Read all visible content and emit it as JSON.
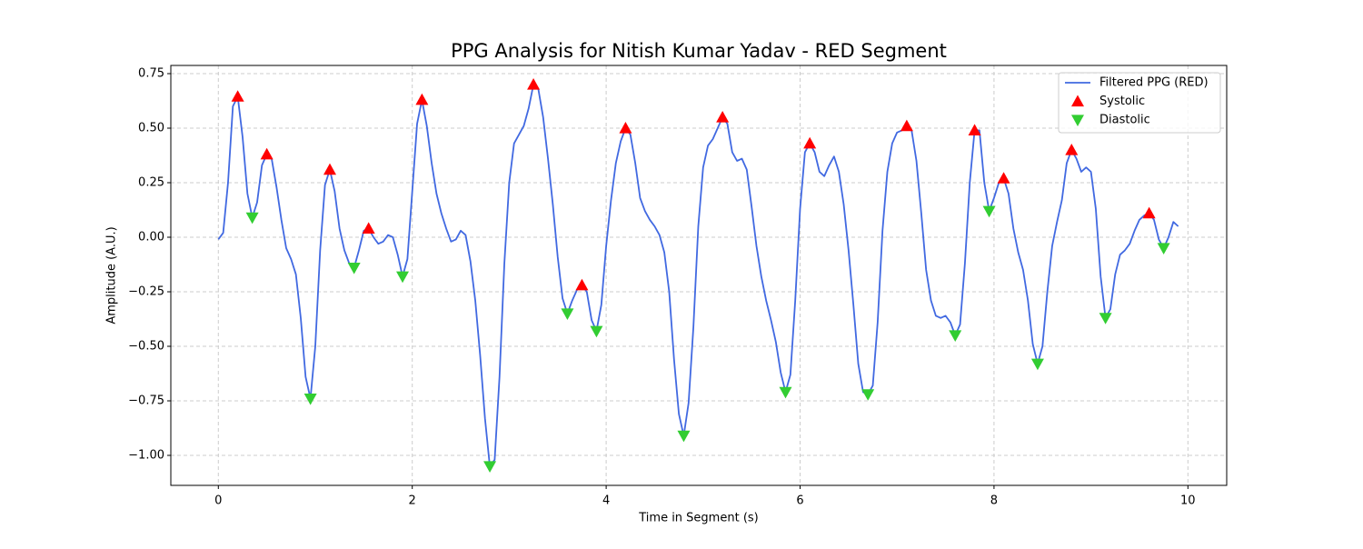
{
  "chart_data": {
    "type": "line",
    "title": "PPG Analysis for Nitish Kumar Yadav - RED Segment",
    "xlabel": "Time in Segment (s)",
    "ylabel": "Amplitude (A.U.)",
    "xlim": [
      -0.49,
      10.4
    ],
    "ylim": [
      -1.1375,
      0.7875
    ],
    "xticks": [
      0,
      2,
      4,
      6,
      8,
      10
    ],
    "yticks": [
      {
        "value": -1.0,
        "label": "−1.00"
      },
      {
        "value": -0.75,
        "label": "−0.75"
      },
      {
        "value": -0.5,
        "label": "−0.50"
      },
      {
        "value": -0.25,
        "label": "−0.25"
      },
      {
        "value": 0,
        "label": "0.00"
      },
      {
        "value": 0.25,
        "label": "0.25"
      },
      {
        "value": 0.5,
        "label": "0.50"
      },
      {
        "value": 0.75,
        "label": "0.75"
      }
    ],
    "grid": true,
    "legend": "upper right",
    "series": [
      {
        "name": "Filtered PPG (RED)",
        "color": "#4169e1",
        "x": [
          0,
          0.05,
          0.1,
          0.15,
          0.2,
          0.25,
          0.3,
          0.35,
          0.4,
          0.45,
          0.5,
          0.55,
          0.6,
          0.65,
          0.7,
          0.75,
          0.8,
          0.85,
          0.9,
          0.95,
          1,
          1.05,
          1.1,
          1.15,
          1.2,
          1.25,
          1.3,
          1.35,
          1.4,
          1.45,
          1.5,
          1.55,
          1.6,
          1.65,
          1.7,
          1.75,
          1.8,
          1.85,
          1.9,
          1.95,
          2,
          2.05,
          2.1,
          2.15,
          2.2,
          2.25,
          2.3,
          2.35,
          2.4,
          2.45,
          2.5,
          2.55,
          2.6,
          2.65,
          2.7,
          2.75,
          2.8,
          2.85,
          2.9,
          2.95,
          3,
          3.05,
          3.1,
          3.15,
          3.2,
          3.25,
          3.3,
          3.35,
          3.4,
          3.45,
          3.5,
          3.55,
          3.6,
          3.65,
          3.7,
          3.75,
          3.8,
          3.85,
          3.9,
          3.95,
          4,
          4.05,
          4.1,
          4.15,
          4.2,
          4.25,
          4.3,
          4.35,
          4.4,
          4.45,
          4.5,
          4.55,
          4.6,
          4.65,
          4.7,
          4.75,
          4.8,
          4.85,
          4.9,
          4.95,
          5,
          5.05,
          5.1,
          5.15,
          5.2,
          5.25,
          5.3,
          5.35,
          5.4,
          5.45,
          5.5,
          5.55,
          5.6,
          5.65,
          5.7,
          5.75,
          5.8,
          5.85,
          5.9,
          5.95,
          6,
          6.05,
          6.1,
          6.15,
          6.2,
          6.25,
          6.3,
          6.35,
          6.4,
          6.45,
          6.5,
          6.55,
          6.6,
          6.65,
          6.7,
          6.75,
          6.8,
          6.85,
          6.9,
          6.95,
          7,
          7.05,
          7.1,
          7.15,
          7.2,
          7.25,
          7.3,
          7.35,
          7.4,
          7.45,
          7.5,
          7.55,
          7.6,
          7.65,
          7.7,
          7.75,
          7.8,
          7.85,
          7.9,
          7.95,
          8,
          8.05,
          8.1,
          8.15,
          8.2,
          8.25,
          8.3,
          8.35,
          8.4,
          8.45,
          8.5,
          8.55,
          8.6,
          8.65,
          8.7,
          8.75,
          8.8,
          8.85,
          8.9,
          8.95,
          9,
          9.05,
          9.1,
          9.15,
          9.2,
          9.25,
          9.3,
          9.35,
          9.4,
          9.45,
          9.5,
          9.55,
          9.6,
          9.65,
          9.7,
          9.75,
          9.8,
          9.85,
          9.9
        ],
        "values": [
          -0.01,
          0.02,
          0.25,
          0.6,
          0.645,
          0.46,
          0.2,
          0.09,
          0.16,
          0.33,
          0.38,
          0.36,
          0.23,
          0.08,
          -0.05,
          -0.1,
          -0.17,
          -0.37,
          -0.64,
          -0.74,
          -0.5,
          -0.06,
          0.24,
          0.31,
          0.21,
          0.04,
          -0.06,
          -0.12,
          -0.14,
          -0.06,
          0.03,
          0.04,
          0.0,
          -0.03,
          -0.02,
          0.01,
          0.0,
          -0.08,
          -0.18,
          -0.1,
          0.21,
          0.52,
          0.63,
          0.51,
          0.34,
          0.2,
          0.11,
          0.04,
          -0.02,
          -0.01,
          0.03,
          0.01,
          -0.11,
          -0.29,
          -0.54,
          -0.83,
          -1.05,
          -1.02,
          -0.64,
          -0.12,
          0.25,
          0.43,
          0.47,
          0.51,
          0.59,
          0.7,
          0.68,
          0.55,
          0.36,
          0.15,
          -0.09,
          -0.28,
          -0.35,
          -0.29,
          -0.24,
          -0.22,
          -0.25,
          -0.38,
          -0.43,
          -0.31,
          -0.04,
          0.17,
          0.34,
          0.44,
          0.5,
          0.47,
          0.34,
          0.18,
          0.12,
          0.08,
          0.05,
          0.01,
          -0.07,
          -0.25,
          -0.56,
          -0.81,
          -0.91,
          -0.76,
          -0.41,
          0.05,
          0.32,
          0.42,
          0.45,
          0.5,
          0.55,
          0.52,
          0.39,
          0.35,
          0.36,
          0.31,
          0.14,
          -0.04,
          -0.18,
          -0.29,
          -0.38,
          -0.48,
          -0.62,
          -0.71,
          -0.63,
          -0.29,
          0.13,
          0.39,
          0.43,
          0.39,
          0.3,
          0.28,
          0.33,
          0.37,
          0.3,
          0.15,
          -0.06,
          -0.31,
          -0.58,
          -0.71,
          -0.72,
          -0.68,
          -0.39,
          0.03,
          0.3,
          0.43,
          0.48,
          0.49,
          0.51,
          0.49,
          0.35,
          0.11,
          -0.15,
          -0.29,
          -0.36,
          -0.37,
          -0.36,
          -0.39,
          -0.45,
          -0.4,
          -0.12,
          0.25,
          0.49,
          0.49,
          0.25,
          0.12,
          0.18,
          0.25,
          0.27,
          0.2,
          0.04,
          -0.07,
          -0.15,
          -0.29,
          -0.49,
          -0.58,
          -0.5,
          -0.25,
          -0.04,
          0.07,
          0.17,
          0.34,
          0.4,
          0.36,
          0.3,
          0.32,
          0.3,
          0.13,
          -0.18,
          -0.37,
          -0.33,
          -0.17,
          -0.08,
          -0.06,
          -0.03,
          0.03,
          0.08,
          0.1,
          0.11,
          0.08,
          -0.01,
          -0.05,
          0.0,
          0.07,
          0.05
        ]
      },
      {
        "name": "Systolic",
        "color": "#ff0000",
        "marker": "^",
        "x": [
          0.2,
          0.5,
          1.15,
          1.55,
          2.1,
          3.25,
          3.75,
          4.2,
          5.2,
          6.1,
          7.1,
          7.8,
          8.1,
          8.8,
          9.6
        ],
        "values": [
          0.645,
          0.38,
          0.31,
          0.04,
          0.63,
          0.7,
          -0.22,
          0.5,
          0.55,
          0.43,
          0.51,
          0.49,
          0.27,
          0.4,
          0.11
        ]
      },
      {
        "name": "Diastolic",
        "color": "#32cd32",
        "marker": "v",
        "x": [
          0.35,
          0.95,
          1.4,
          1.9,
          2.8,
          3.6,
          3.9,
          4.8,
          5.85,
          6.7,
          7.6,
          7.95,
          8.45,
          9.15,
          9.75
        ],
        "values": [
          0.09,
          -0.74,
          -0.14,
          -0.18,
          -1.05,
          -0.35,
          -0.43,
          -0.91,
          -0.71,
          -0.72,
          -0.45,
          0.12,
          -0.58,
          -0.37,
          -0.05
        ]
      }
    ]
  }
}
